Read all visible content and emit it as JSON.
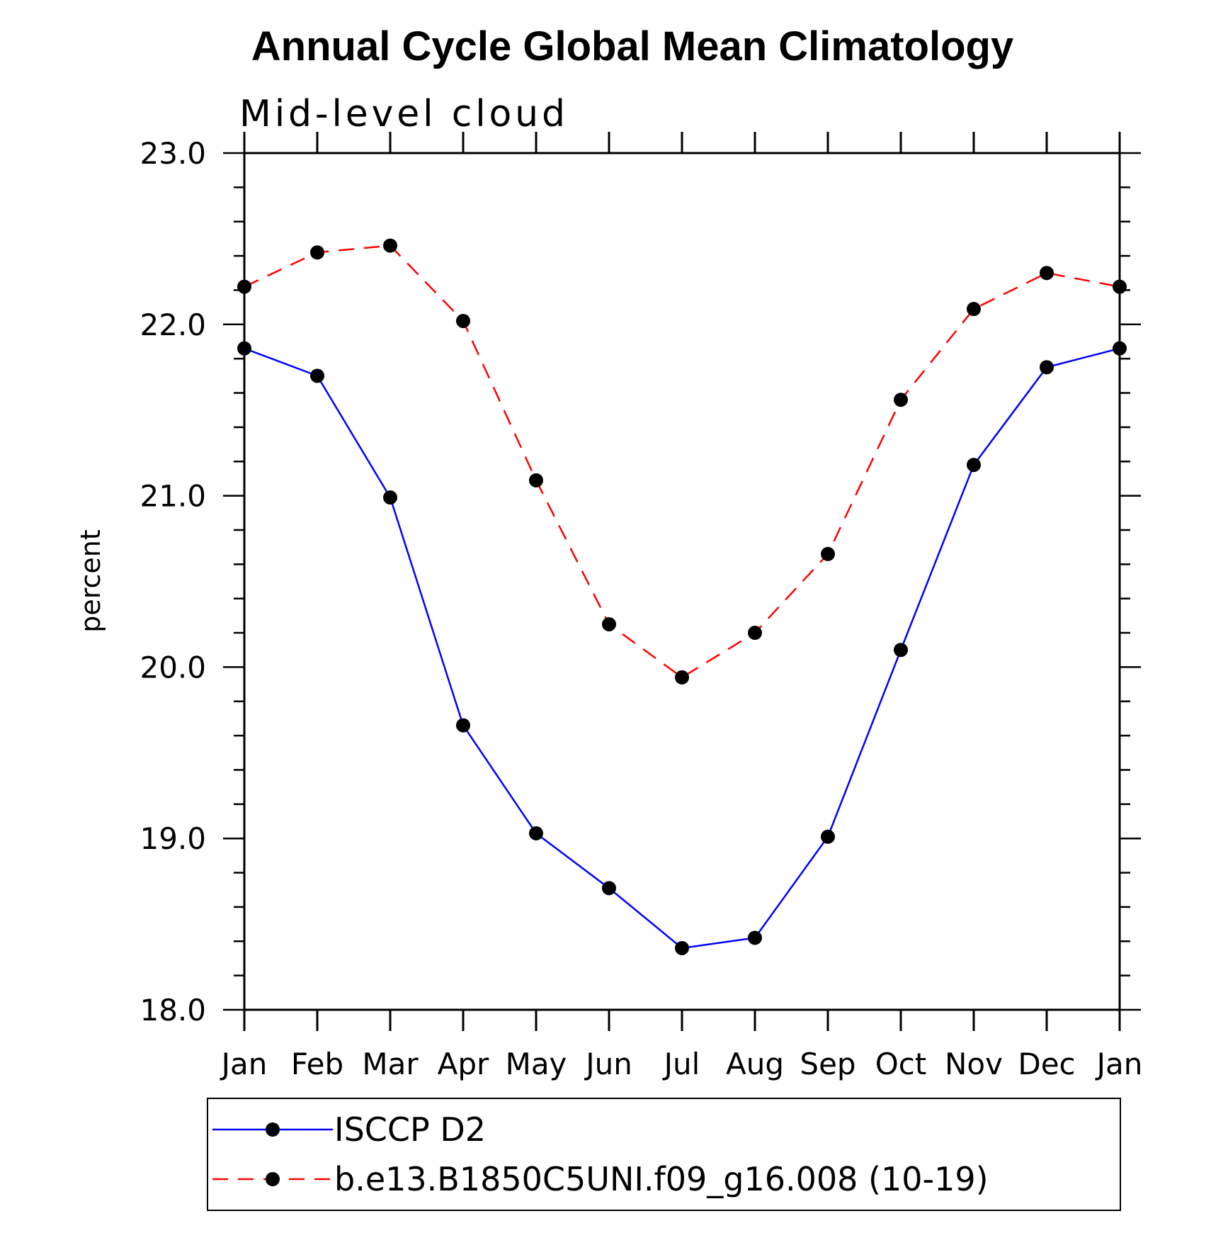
{
  "chart_data": {
    "type": "line",
    "title": "Annual Cycle Global Mean Climatology",
    "subtitle": "Mid-level cloud",
    "xlabel": "",
    "ylabel": "percent",
    "categories": [
      "Jan",
      "Feb",
      "Mar",
      "Apr",
      "May",
      "Jun",
      "Jul",
      "Aug",
      "Sep",
      "Oct",
      "Nov",
      "Dec",
      "Jan"
    ],
    "ylim": [
      18.0,
      23.0
    ],
    "y_ticks": [
      "18.0",
      "19.0",
      "20.0",
      "21.0",
      "22.0",
      "23.0"
    ],
    "y_minor_step": 0.2,
    "grid": false,
    "legend_position": "bottom",
    "series": [
      {
        "name": "ISCCP D2",
        "color": "#0000ff",
        "line_style": "solid",
        "marker": "filled-circle",
        "values": [
          21.86,
          21.7,
          20.99,
          19.66,
          19.03,
          18.71,
          18.36,
          18.42,
          19.01,
          20.1,
          21.18,
          21.75,
          21.86
        ]
      },
      {
        "name": "b.e13.B1850C5UNI.f09_g16.008 (10-19)",
        "color": "#ff0000",
        "line_style": "dashed",
        "marker": "filled-circle",
        "values": [
          22.22,
          22.42,
          22.46,
          22.02,
          21.09,
          20.25,
          19.94,
          20.2,
          20.66,
          21.56,
          22.09,
          22.3,
          22.22
        ]
      }
    ]
  }
}
